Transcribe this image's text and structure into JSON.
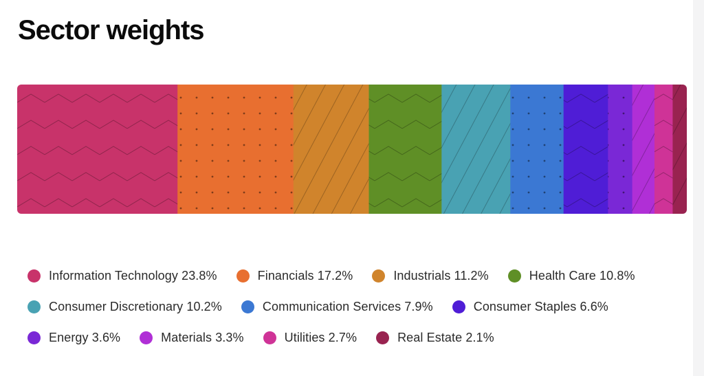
{
  "title": "Sector weights",
  "chart_data": {
    "type": "bar",
    "subtype": "stacked-100-horizontal",
    "title": "Sector weights",
    "unit": "%",
    "legend_position": "bottom",
    "series": [
      {
        "name": "Information Technology",
        "value": 23.8,
        "color": "#c8336a",
        "pattern": "zigzag"
      },
      {
        "name": "Financials",
        "value": 17.2,
        "color": "#e86f30",
        "pattern": "dots"
      },
      {
        "name": "Industrials",
        "value": 11.2,
        "color": "#d0842c",
        "pattern": "diagonal"
      },
      {
        "name": "Health Care",
        "value": 10.8,
        "color": "#5f8f26",
        "pattern": "zigzag"
      },
      {
        "name": "Consumer Discretionary",
        "value": 10.2,
        "color": "#49a2b3",
        "pattern": "diagonal"
      },
      {
        "name": "Communication Services",
        "value": 7.9,
        "color": "#3b78d3",
        "pattern": "dots"
      },
      {
        "name": "Consumer Staples",
        "value": 6.6,
        "color": "#4f1dd6",
        "pattern": "zigzag"
      },
      {
        "name": "Energy",
        "value": 3.6,
        "color": "#7a28d6",
        "pattern": "dots"
      },
      {
        "name": "Materials",
        "value": 3.3,
        "color": "#b02fd6",
        "pattern": "diagonal"
      },
      {
        "name": "Utilities",
        "value": 2.7,
        "color": "#cf3397",
        "pattern": "zigzag"
      },
      {
        "name": "Real Estate",
        "value": 2.1,
        "color": "#992350",
        "pattern": "diagonal"
      }
    ],
    "legend_labels": [
      "Information Technology 23.8%",
      "Financials 17.2%",
      "Industrials 11.2%",
      "Health Care 10.8%",
      "Consumer Discretionary 10.2%",
      "Communication Services 7.9%",
      "Consumer Staples 6.6%",
      "Energy 3.6%",
      "Materials 3.3%",
      "Utilities 2.7%",
      "Real Estate 2.1%"
    ]
  }
}
